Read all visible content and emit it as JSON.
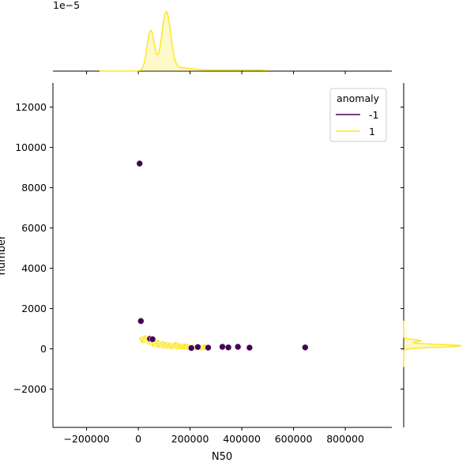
{
  "chart_data": {
    "type": "scatter",
    "xlabel": "N50",
    "ylabel": "number",
    "xlim": [
      -330000,
      980000
    ],
    "ylim": [
      -3900,
      13200
    ],
    "xticks": [
      -200000,
      0,
      200000,
      400000,
      600000,
      800000
    ],
    "xtick_labels": [
      "−200000",
      "0",
      "200000",
      "400000",
      "600000",
      "800000"
    ],
    "yticks": [
      -2000,
      0,
      2000,
      4000,
      6000,
      8000,
      10000,
      12000
    ],
    "ytick_labels": [
      "−2000",
      "0",
      "2000",
      "4000",
      "6000",
      "8000",
      "10000",
      "12000"
    ],
    "top_marginal_multiplier": "1e−5",
    "legend": {
      "title": "anomaly",
      "placement": "upper right",
      "entries": [
        {
          "label": "-1",
          "color": "#440154"
        },
        {
          "label": "1",
          "color": "#fde725"
        }
      ]
    },
    "series": [
      {
        "name": "-1",
        "color": "#440154",
        "points": [
          [
            5000,
            9200
          ],
          [
            10000,
            1380
          ],
          [
            45000,
            500
          ],
          [
            55000,
            480
          ],
          [
            205000,
            40
          ],
          [
            230000,
            90
          ],
          [
            270000,
            60
          ],
          [
            325000,
            100
          ],
          [
            348000,
            70
          ],
          [
            385000,
            100
          ],
          [
            430000,
            60
          ],
          [
            645000,
            70
          ]
        ]
      },
      {
        "name": "1",
        "color": "#fde725",
        "points": [
          [
            15000,
            480
          ],
          [
            20000,
            420
          ],
          [
            28000,
            520
          ],
          [
            35000,
            460
          ],
          [
            40000,
            380
          ],
          [
            45000,
            310
          ],
          [
            50000,
            340
          ],
          [
            58000,
            280
          ],
          [
            62000,
            230
          ],
          [
            70000,
            260
          ],
          [
            75000,
            300
          ],
          [
            80000,
            180
          ],
          [
            88000,
            210
          ],
          [
            95000,
            240
          ],
          [
            100000,
            160
          ],
          [
            108000,
            190
          ],
          [
            115000,
            140
          ],
          [
            122000,
            170
          ],
          [
            130000,
            120
          ],
          [
            138000,
            150
          ],
          [
            145000,
            200
          ],
          [
            152000,
            110
          ],
          [
            160000,
            130
          ],
          [
            170000,
            100
          ],
          [
            182000,
            120
          ],
          [
            195000,
            80
          ],
          [
            212000,
            90
          ],
          [
            225000,
            70
          ],
          [
            245000,
            60
          ],
          [
            258000,
            80
          ]
        ]
      }
    ],
    "top_marginal": {
      "type": "kde",
      "series": "1",
      "peaks": [
        {
          "x": 48000,
          "relative_height": 0.7
        },
        {
          "x": 108000,
          "relative_height": 1.0
        }
      ]
    },
    "right_marginal": {
      "type": "kde",
      "series": [
        "-1",
        "1"
      ],
      "peak_y": 150
    }
  }
}
